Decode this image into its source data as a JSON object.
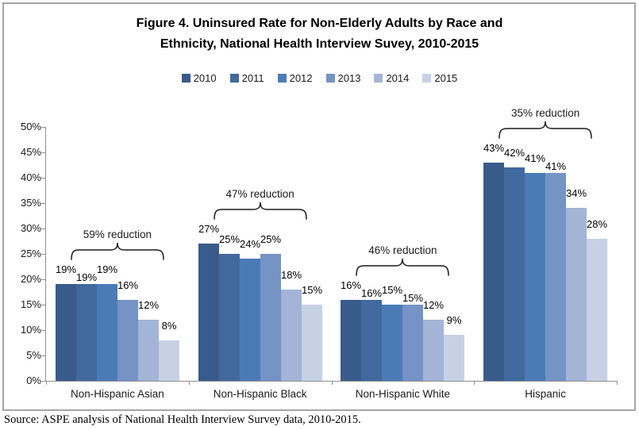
{
  "title_lines": [
    "Figure 4. Uninsured Rate for Non-Elderly Adults by Race and",
    "Ethnicity, National Health Interview Suvey, 2010-2015"
  ],
  "source": "Source: ASPE analysis of National Health Interview Survey data, 2010-2015.",
  "colors": {
    "axis": "#8f8f8f",
    "frame_border": "#a6a6a6",
    "bracket": "#1a1a1a"
  },
  "chart_data": {
    "type": "bar",
    "title": "Figure 4. Uninsured Rate for Non-Elderly Adults by Race and Ethnicity, National Health Interview Suvey, 2010-2015",
    "categories": [
      "Non-Hispanic Asian",
      "Non-Hispanic Black",
      "Non-Hispanic White",
      "Hispanic"
    ],
    "series": [
      {
        "name": "2010",
        "color": "#395b8c",
        "values": [
          19,
          27,
          16,
          43
        ]
      },
      {
        "name": "2011",
        "color": "#41699d",
        "values": [
          19,
          25,
          16,
          42
        ]
      },
      {
        "name": "2012",
        "color": "#4b7bb7",
        "values": [
          19,
          24,
          15,
          41
        ]
      },
      {
        "name": "2013",
        "color": "#7593c5",
        "values": [
          16,
          25,
          15,
          41
        ]
      },
      {
        "name": "2014",
        "color": "#a4b4d7",
        "values": [
          12,
          18,
          12,
          34
        ]
      },
      {
        "name": "2015",
        "color": "#c7d1e6",
        "values": [
          8,
          15,
          9,
          28
        ]
      }
    ],
    "value_suffix": "%",
    "annotations": [
      {
        "category": "Non-Hispanic Asian",
        "label": "59% reduction"
      },
      {
        "category": "Non-Hispanic Black",
        "label": "47% reduction"
      },
      {
        "category": "Non-Hispanic White",
        "label": "46% reduction"
      },
      {
        "category": "Hispanic",
        "label": "35% reduction"
      }
    ],
    "xlabel": "",
    "ylabel": "",
    "ylim": [
      0,
      50
    ],
    "ytick_labels": [
      "0%",
      "5%",
      "10%",
      "15%",
      "20%",
      "25%",
      "30%",
      "35%",
      "40%",
      "45%",
      "50%"
    ],
    "grid": false,
    "legend_position": "top-center"
  }
}
